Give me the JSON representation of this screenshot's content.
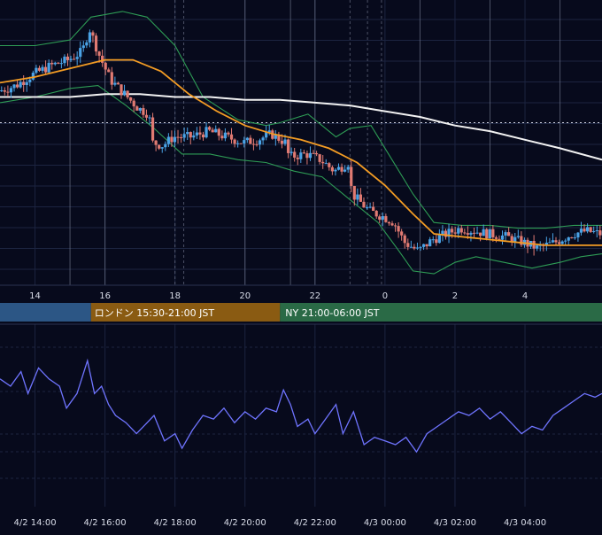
{
  "colors": {
    "background": "#070a1c",
    "grid": "#1c2440",
    "vline": "#7a8096",
    "candle_up": "#4aa3e6",
    "candle_down": "#e07a72",
    "bollinger": "#2e9c55",
    "ma_orange": "#f39c24",
    "ma_white": "#f2f2f2",
    "rsi": "#6f74ff",
    "axis_text": "#d8dce8",
    "session_tokyo": "#2c5685",
    "session_london": "#8a5b12",
    "session_ny": "#2a6a46"
  },
  "sessions": {
    "london": "ロンドン 15:30-21:00 JST",
    "ny": "NY 21:00-06:00 JST"
  },
  "chart_data": [
    {
      "type": "line",
      "panel": "price",
      "description_series": [
        "candles",
        "bollinger_upper",
        "bollinger_lower",
        "ma_orange",
        "ma_white"
      ],
      "x_ticks": [
        "14",
        "16",
        "18",
        "20",
        "22",
        "0",
        "2",
        "4"
      ],
      "x_range_hours": [
        13,
        30.2
      ],
      "price_path": [
        [
          13.0,
          0.68
        ],
        [
          13.5,
          0.7
        ],
        [
          14.0,
          0.74
        ],
        [
          14.5,
          0.77
        ],
        [
          15.0,
          0.79
        ],
        [
          15.4,
          0.82
        ],
        [
          15.6,
          0.9
        ],
        [
          15.9,
          0.8
        ],
        [
          16.2,
          0.72
        ],
        [
          16.6,
          0.67
        ],
        [
          17.0,
          0.62
        ],
        [
          17.3,
          0.6
        ],
        [
          17.4,
          0.5
        ],
        [
          17.7,
          0.49
        ],
        [
          18.0,
          0.52
        ],
        [
          18.5,
          0.52
        ],
        [
          19.0,
          0.54
        ],
        [
          19.5,
          0.52
        ],
        [
          20.0,
          0.5
        ],
        [
          20.4,
          0.51
        ],
        [
          20.8,
          0.53
        ],
        [
          21.2,
          0.5
        ],
        [
          21.3,
          0.45
        ],
        [
          21.8,
          0.46
        ],
        [
          22.2,
          0.44
        ],
        [
          22.6,
          0.4
        ],
        [
          23.0,
          0.43
        ],
        [
          23.1,
          0.32
        ],
        [
          23.6,
          0.26
        ],
        [
          24.0,
          0.24
        ],
        [
          24.3,
          0.22
        ],
        [
          24.6,
          0.15
        ],
        [
          25.0,
          0.12
        ],
        [
          25.4,
          0.16
        ],
        [
          25.8,
          0.18
        ],
        [
          26.2,
          0.2
        ],
        [
          26.6,
          0.19
        ],
        [
          27.0,
          0.18
        ],
        [
          27.5,
          0.17
        ],
        [
          28.0,
          0.15
        ],
        [
          28.4,
          0.13
        ],
        [
          28.9,
          0.15
        ],
        [
          29.4,
          0.18
        ],
        [
          29.8,
          0.19
        ],
        [
          30.2,
          0.18
        ]
      ],
      "bollinger_upper": [
        [
          13.0,
          0.84
        ],
        [
          14.0,
          0.84
        ],
        [
          15.0,
          0.86
        ],
        [
          15.6,
          0.94
        ],
        [
          16.5,
          0.96
        ],
        [
          17.2,
          0.94
        ],
        [
          18.0,
          0.84
        ],
        [
          18.8,
          0.66
        ],
        [
          19.8,
          0.58
        ],
        [
          20.6,
          0.56
        ],
        [
          21.0,
          0.57
        ],
        [
          21.8,
          0.6
        ],
        [
          22.6,
          0.52
        ],
        [
          23.0,
          0.55
        ],
        [
          23.6,
          0.56
        ],
        [
          24.2,
          0.44
        ],
        [
          24.8,
          0.32
        ],
        [
          25.4,
          0.22
        ],
        [
          26.2,
          0.21
        ],
        [
          27.0,
          0.21
        ],
        [
          27.8,
          0.2
        ],
        [
          28.6,
          0.2
        ],
        [
          29.4,
          0.21
        ],
        [
          30.2,
          0.21
        ]
      ],
      "bollinger_lower": [
        [
          13.0,
          0.64
        ],
        [
          14.0,
          0.66
        ],
        [
          15.0,
          0.69
        ],
        [
          15.8,
          0.7
        ],
        [
          16.6,
          0.63
        ],
        [
          17.4,
          0.55
        ],
        [
          18.2,
          0.46
        ],
        [
          19.0,
          0.46
        ],
        [
          19.8,
          0.44
        ],
        [
          20.6,
          0.43
        ],
        [
          21.4,
          0.4
        ],
        [
          22.2,
          0.38
        ],
        [
          23.0,
          0.3
        ],
        [
          23.8,
          0.22
        ],
        [
          24.4,
          0.12
        ],
        [
          24.8,
          0.05
        ],
        [
          25.4,
          0.04
        ],
        [
          26.0,
          0.08
        ],
        [
          26.6,
          0.1
        ],
        [
          27.4,
          0.08
        ],
        [
          28.2,
          0.06
        ],
        [
          29.0,
          0.08
        ],
        [
          29.6,
          0.1
        ],
        [
          30.2,
          0.11
        ]
      ],
      "ma_orange": [
        [
          13.0,
          0.71
        ],
        [
          14.0,
          0.73
        ],
        [
          15.0,
          0.76
        ],
        [
          16.0,
          0.79
        ],
        [
          16.8,
          0.79
        ],
        [
          17.6,
          0.75
        ],
        [
          18.4,
          0.67
        ],
        [
          19.2,
          0.61
        ],
        [
          20.0,
          0.56
        ],
        [
          20.8,
          0.53
        ],
        [
          21.6,
          0.51
        ],
        [
          22.4,
          0.48
        ],
        [
          23.2,
          0.43
        ],
        [
          24.0,
          0.35
        ],
        [
          24.8,
          0.25
        ],
        [
          25.4,
          0.18
        ],
        [
          26.2,
          0.17
        ],
        [
          27.0,
          0.16
        ],
        [
          27.8,
          0.15
        ],
        [
          28.6,
          0.14
        ],
        [
          29.4,
          0.14
        ],
        [
          30.2,
          0.14
        ]
      ],
      "ma_white": [
        [
          13.0,
          0.66
        ],
        [
          14.0,
          0.66
        ],
        [
          15.0,
          0.66
        ],
        [
          16.0,
          0.67
        ],
        [
          17.0,
          0.67
        ],
        [
          18.0,
          0.66
        ],
        [
          19.0,
          0.66
        ],
        [
          20.0,
          0.65
        ],
        [
          21.0,
          0.65
        ],
        [
          22.0,
          0.64
        ],
        [
          23.0,
          0.63
        ],
        [
          24.0,
          0.61
        ],
        [
          25.0,
          0.59
        ],
        [
          26.0,
          0.56
        ],
        [
          27.0,
          0.54
        ],
        [
          28.0,
          0.51
        ],
        [
          29.0,
          0.48
        ],
        [
          30.2,
          0.44
        ]
      ],
      "reference_level": 0.57,
      "session_vlines_hours": [
        15.0,
        16.0,
        18.0,
        18.25,
        20.0,
        21.3,
        22.0,
        23.0,
        23.5,
        23.9,
        25.0,
        27.0,
        29.0
      ]
    },
    {
      "type": "line",
      "panel": "oscillator",
      "x_tick_labels": [
        "4/2 14:00",
        "4/2 16:00",
        "4/2 18:00",
        "4/2 20:00",
        "4/2 22:00",
        "4/3 00:00",
        "4/3 02:00",
        "4/3 04:00"
      ],
      "y_range": [
        0,
        1
      ],
      "series_path": [
        [
          13.0,
          0.7
        ],
        [
          13.3,
          0.66
        ],
        [
          13.6,
          0.74
        ],
        [
          13.8,
          0.62
        ],
        [
          14.1,
          0.76
        ],
        [
          14.4,
          0.7
        ],
        [
          14.7,
          0.66
        ],
        [
          14.9,
          0.54
        ],
        [
          15.2,
          0.62
        ],
        [
          15.5,
          0.8
        ],
        [
          15.7,
          0.62
        ],
        [
          15.9,
          0.66
        ],
        [
          16.1,
          0.56
        ],
        [
          16.3,
          0.5
        ],
        [
          16.6,
          0.46
        ],
        [
          16.9,
          0.4
        ],
        [
          17.1,
          0.44
        ],
        [
          17.4,
          0.5
        ],
        [
          17.7,
          0.36
        ],
        [
          18.0,
          0.4
        ],
        [
          18.2,
          0.32
        ],
        [
          18.5,
          0.42
        ],
        [
          18.8,
          0.5
        ],
        [
          19.1,
          0.48
        ],
        [
          19.4,
          0.54
        ],
        [
          19.7,
          0.46
        ],
        [
          20.0,
          0.52
        ],
        [
          20.3,
          0.48
        ],
        [
          20.6,
          0.54
        ],
        [
          20.9,
          0.52
        ],
        [
          21.1,
          0.64
        ],
        [
          21.3,
          0.56
        ],
        [
          21.5,
          0.44
        ],
        [
          21.8,
          0.48
        ],
        [
          22.0,
          0.4
        ],
        [
          22.3,
          0.48
        ],
        [
          22.6,
          0.56
        ],
        [
          22.8,
          0.4
        ],
        [
          23.1,
          0.52
        ],
        [
          23.4,
          0.34
        ],
        [
          23.7,
          0.38
        ],
        [
          24.0,
          0.36
        ],
        [
          24.3,
          0.34
        ],
        [
          24.6,
          0.38
        ],
        [
          24.9,
          0.3
        ],
        [
          25.2,
          0.4
        ],
        [
          25.5,
          0.44
        ],
        [
          25.8,
          0.48
        ],
        [
          26.1,
          0.52
        ],
        [
          26.4,
          0.5
        ],
        [
          26.7,
          0.54
        ],
        [
          27.0,
          0.48
        ],
        [
          27.3,
          0.52
        ],
        [
          27.6,
          0.46
        ],
        [
          27.9,
          0.4
        ],
        [
          28.2,
          0.44
        ],
        [
          28.5,
          0.42
        ],
        [
          28.8,
          0.5
        ],
        [
          29.1,
          0.54
        ],
        [
          29.4,
          0.58
        ],
        [
          29.7,
          0.62
        ],
        [
          30.0,
          0.6
        ],
        [
          30.2,
          0.62
        ]
      ]
    }
  ]
}
